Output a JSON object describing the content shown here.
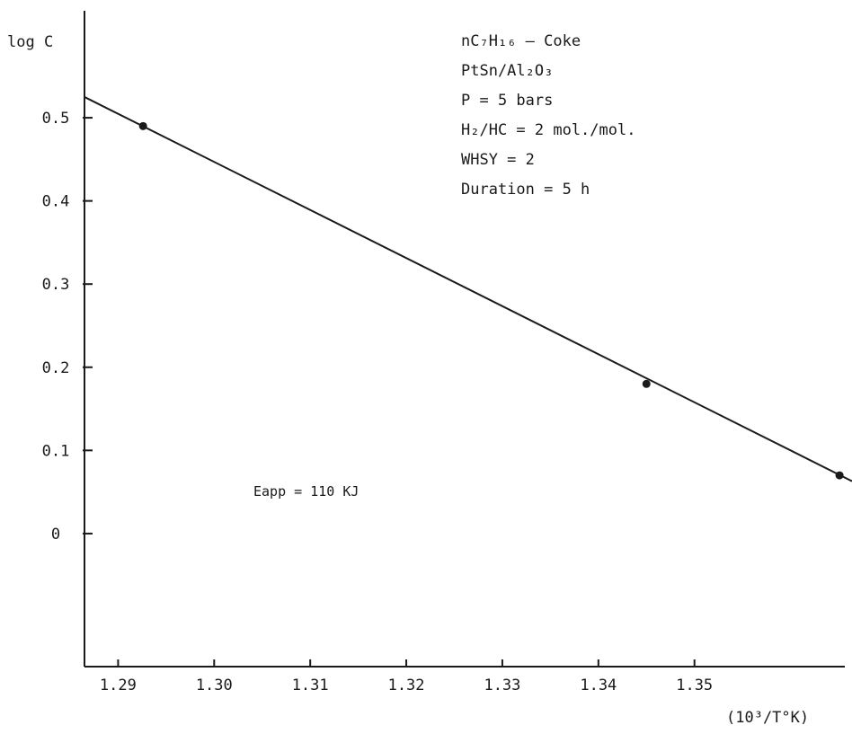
{
  "chart_data": {
    "type": "scatter",
    "ylabel": "log C",
    "xlabel": "(10³/T°K)",
    "xlim": [
      1.2865,
      1.3664
    ],
    "ylim": [
      -0.16,
      0.62
    ],
    "x_ticks": [
      {
        "value": 1.29,
        "label": "1.29"
      },
      {
        "value": 1.3,
        "label": "1.30"
      },
      {
        "value": 1.31,
        "label": "1.31"
      },
      {
        "value": 1.32,
        "label": "1.32"
      },
      {
        "value": 1.33,
        "label": "1.33"
      },
      {
        "value": 1.34,
        "label": "1.34"
      },
      {
        "value": 1.35,
        "label": "1.35"
      }
    ],
    "y_ticks": [
      {
        "value": 0.5,
        "label": "0.5"
      },
      {
        "value": 0.4,
        "label": "0.4"
      },
      {
        "value": 0.3,
        "label": "0.3"
      },
      {
        "value": 0.2,
        "label": "0.2"
      },
      {
        "value": 0.1,
        "label": "0.1"
      },
      {
        "value": 0.0,
        "label": "0"
      }
    ],
    "points": [
      {
        "x": 1.2926,
        "y": 0.49
      },
      {
        "x": 1.345,
        "y": 0.18
      },
      {
        "x": 1.3651,
        "y": 0.07
      }
    ],
    "fit_line": [
      {
        "x": 1.2865,
        "y": 0.525
      },
      {
        "x": 1.3664,
        "y": 0.063
      }
    ],
    "legend_lines": [
      "nC₇H₁₆ — Coke",
      "PtSn/Al₂O₃",
      "P = 5 bars",
      "H₂/HC = 2 mol./mol.",
      "WHSY = 2",
      "Duration = 5 h"
    ],
    "annotation": "Eapp = 110 KJ",
    "grid": false,
    "legend_position": "top-right",
    "colors": {
      "ink": "#1a1a1a"
    }
  }
}
